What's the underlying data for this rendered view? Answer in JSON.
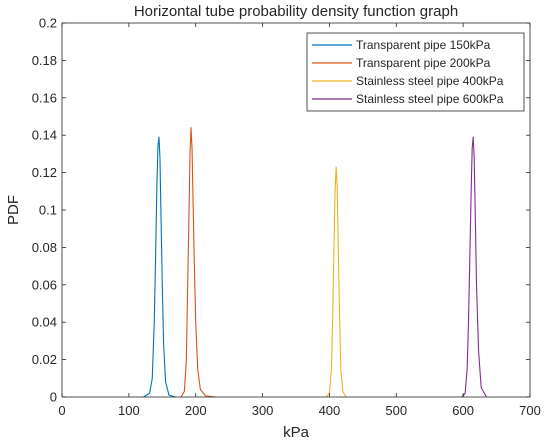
{
  "chart_data": {
    "type": "line",
    "title": "Horizontal tube probability density function graph",
    "xlabel": "kPa",
    "ylabel": "PDF",
    "xlim": [
      0,
      700
    ],
    "ylim": [
      0,
      0.2
    ],
    "xticks": [
      0,
      100,
      200,
      300,
      400,
      500,
      600,
      700
    ],
    "yticks": [
      0,
      0.02,
      0.04,
      0.06,
      0.08,
      0.1,
      0.12,
      0.14,
      0.16,
      0.18,
      0.2
    ],
    "grid": false,
    "legend_position": "top-right",
    "series": [
      {
        "name": "Transparent pipe 150kPa",
        "color": "#0072BD",
        "x": [
          122,
          131,
          135,
          138,
          140,
          142,
          143.5,
          145,
          146.5,
          148,
          150,
          152,
          155,
          160,
          170
        ],
        "y": [
          0,
          0.002,
          0.01,
          0.04,
          0.075,
          0.115,
          0.134,
          0.139,
          0.128,
          0.098,
          0.06,
          0.028,
          0.008,
          0.001,
          0
        ]
      },
      {
        "name": "Transparent pipe 200kPa",
        "color": "#D95319",
        "x": [
          178,
          183,
          186,
          188,
          190,
          191.5,
          193,
          194.5,
          196,
          198,
          200,
          203,
          207,
          215,
          230
        ],
        "y": [
          0,
          0.003,
          0.02,
          0.06,
          0.1,
          0.13,
          0.144,
          0.133,
          0.105,
          0.07,
          0.04,
          0.015,
          0.004,
          0.0005,
          0
        ]
      },
      {
        "name": "Stainless steel pipe 400kPa",
        "color": "#EDB120",
        "x": [
          395,
          400,
          403,
          405,
          407,
          408.5,
          410,
          411.5,
          413,
          415,
          417,
          420,
          425
        ],
        "y": [
          0,
          0.002,
          0.015,
          0.045,
          0.085,
          0.11,
          0.123,
          0.113,
          0.085,
          0.045,
          0.015,
          0.003,
          0
        ]
      },
      {
        "name": "Stainless steel pipe 600kPa",
        "color": "#7E2F8E",
        "x": [
          598,
          603,
          606,
          608,
          610,
          612,
          613.5,
          615,
          616.5,
          618,
          620,
          623,
          627,
          635
        ],
        "y": [
          0,
          0.002,
          0.015,
          0.04,
          0.075,
          0.11,
          0.133,
          0.139,
          0.128,
          0.1,
          0.06,
          0.025,
          0.005,
          0
        ]
      }
    ]
  }
}
